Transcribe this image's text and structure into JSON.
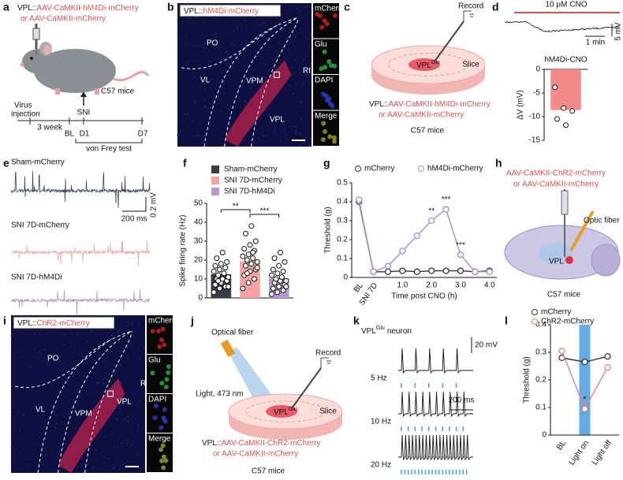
{
  "panel_labels": [
    "a",
    "b",
    "c",
    "d",
    "e",
    "f",
    "g",
    "h",
    "i",
    "j",
    "k",
    "l"
  ],
  "a": {
    "construct_prefix": "VPL::",
    "construct_line1": "AAV-CaMKII-hM4Di-mCherry",
    "construct_line2": "or AAV-CaMKII-mCherry",
    "mice": "C57 mice",
    "virus_lines": [
      "Virus",
      "injection"
    ],
    "sni": "SNI",
    "weeks": "3 week",
    "bl": "BL",
    "d1": "D1",
    "d7": "D7",
    "von_frey": "von Frey test"
  },
  "b": {
    "title_prefix": "VPL::",
    "title_construct": "hM4Di-mCherry",
    "regions": [
      "PO",
      "VL",
      "VPM",
      "VPL",
      "Rt"
    ],
    "channels": [
      "mCherry",
      "Glu",
      "DAPI",
      "Merge"
    ]
  },
  "c": {
    "record": "Record",
    "vpl": "VPL",
    "vpl_sup": "Glu",
    "slice": "Slice",
    "construct_prefix": "VPL::",
    "construct_line1": "AAV-CaMKII-hM4Di-mCherry",
    "construct_line2": "or AAV-CaMKII-mCherry",
    "mice": "C57 mice"
  },
  "d": {
    "cno": "10 μM CNO",
    "scale_time": "1 min",
    "scale_v": "5 mV"
  },
  "e": {
    "traces": [
      "Sham-mCherry",
      "SNI 7D-mCherry",
      "SNI 7D-hM4Di"
    ],
    "scale_v": "0.2 mV",
    "scale_time": "200 ms"
  },
  "h": {
    "construct_line1": "AAV-CaMKII-ChR2-mCherry",
    "construct_line2": "or AAV-CaMKII-mCherry",
    "fiber": "Optic fiber",
    "vpl": "VPL",
    "mice": "C57 mice"
  },
  "i": {
    "title_prefix": "VPL::",
    "title_construct": "ChR2-mCherry",
    "regions": [
      "PO",
      "VL",
      "VPM",
      "VPL",
      "Rt"
    ],
    "channels": [
      "mCherry",
      "Glu",
      "DAPI",
      "Merge"
    ]
  },
  "j": {
    "fiber": "Optical fiber",
    "light": "Light, 473 nm",
    "record": "Record",
    "vpl": "VPL",
    "vpl_sup": "Glu",
    "slice": "Slice",
    "construct_prefix": "VPL::",
    "construct_line1": "AAV-CaMKII-ChR2-mCherry",
    "construct_line2": "or AAV-CaMKII-mCherry",
    "mice": "C57 mice"
  },
  "k": {
    "title": "VPL",
    "title_sup": "Glu",
    "title_suffix": "neuron",
    "freqs": [
      "5 Hz",
      "10 Hz",
      "20 Hz"
    ],
    "scale_v": "20 mV",
    "scale_time": "200 ms"
  },
  "chart_data": [
    {
      "type": "bar",
      "ylabel": "ΔV (mV)",
      "categories": [
        "hM4Di-CNO"
      ],
      "values": [
        -8.6
      ],
      "points": [
        -3.8,
        -8.2,
        -8.8,
        -10.5,
        -11.8
      ],
      "color": "#f28b87",
      "ylim": [
        -15,
        0
      ],
      "yticks": [
        -15,
        -10,
        -5,
        0
      ]
    },
    {
      "type": "bar",
      "ylabel": "Spike firing rate (Hz)",
      "series": [
        {
          "name": "Sham-mCherry",
          "color": "#3a3d45",
          "values": [
            12.5
          ],
          "points": [
            3,
            5,
            6,
            7,
            8,
            9,
            10,
            10,
            11,
            12,
            13,
            14,
            15,
            16,
            17,
            18,
            19,
            21,
            24,
            6,
            9
          ]
        },
        {
          "name": "SNI 7D-mCherry",
          "color": "#f4a3a0",
          "values": [
            19.5
          ],
          "points": [
            5,
            8,
            10,
            12,
            14,
            15,
            17,
            18,
            19,
            20,
            21,
            22,
            23,
            25,
            26,
            28,
            30,
            34,
            38,
            16,
            13,
            24
          ]
        },
        {
          "name": "SNI 7D-hM4Di",
          "color": "#b897d2",
          "values": [
            10.5
          ],
          "points": [
            2,
            3,
            4,
            5,
            6,
            7,
            8,
            9,
            9,
            10,
            11,
            12,
            13,
            14,
            15,
            17,
            19,
            21,
            24,
            6
          ]
        }
      ],
      "annotations": [
        "**",
        "***"
      ],
      "ylim": [
        0,
        50
      ],
      "yticks": [
        0,
        10,
        20,
        30,
        40,
        50
      ]
    },
    {
      "type": "line",
      "xlabel": "Time post CNO (h)",
      "ylabel": "Threshold (g)",
      "categories": [
        "BL",
        "SNI 7D",
        null,
        "1.0",
        null,
        "2.0",
        null,
        "3.0",
        null,
        "4.0"
      ],
      "series": [
        {
          "name": "mCherry",
          "color": "#333333",
          "values": [
            0.4,
            0.03,
            0.03,
            0.035,
            0.03,
            0.035,
            0.035,
            0.035,
            0.03,
            0.035
          ]
        },
        {
          "name": "hM4Di-mCherry",
          "color": "#a98cc8",
          "values": [
            0.41,
            0.03,
            0.06,
            0.14,
            0.22,
            0.3,
            0.36,
            0.12,
            0.03,
            0.03
          ]
        }
      ],
      "annotations": [
        "**",
        "***",
        "***"
      ],
      "legend": "top",
      "ylim": [
        0,
        0.5
      ],
      "yticks": [
        0,
        0.1,
        0.2,
        0.3,
        0.4,
        0.5
      ]
    },
    {
      "type": "line",
      "ylabel": "Threshold (g)",
      "categories": [
        "BL",
        "Light on",
        "Light off"
      ],
      "series": [
        {
          "name": "mCherry",
          "color": "#333333",
          "values": [
            0.28,
            0.265,
            0.285
          ]
        },
        {
          "name": "ChR2-mCherry",
          "color": "#e88080",
          "values": [
            0.305,
            0.095,
            0.245
          ]
        }
      ],
      "annotations": [
        "*"
      ],
      "legend": "upper left",
      "ylim": [
        0,
        0.4
      ],
      "yticks": [
        0,
        0.1,
        0.2,
        0.3,
        0.4
      ]
    }
  ]
}
